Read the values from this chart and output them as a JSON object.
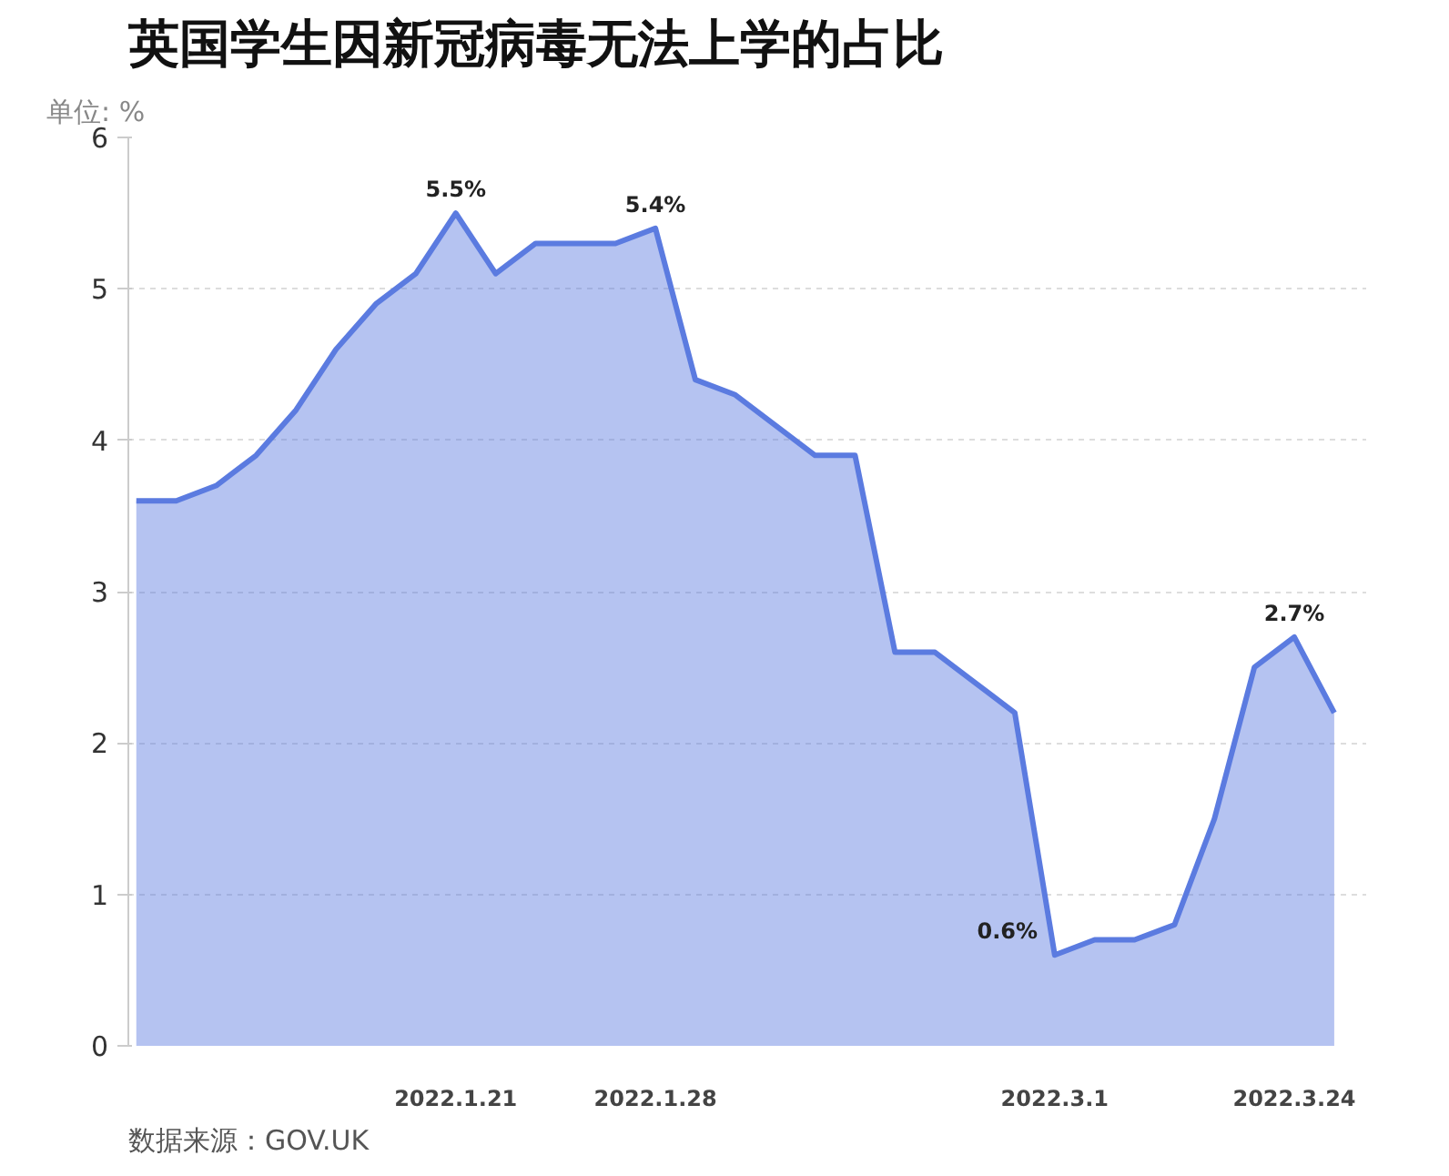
{
  "chart_data": {
    "type": "area",
    "title": "英国学生因新冠病毒无法上学的占比",
    "ylabel": "单位: %",
    "categories": [
      null,
      null,
      null,
      null,
      null,
      null,
      null,
      null,
      "2022.1.21",
      null,
      null,
      null,
      null,
      "2022.1.28",
      null,
      null,
      null,
      null,
      null,
      null,
      null,
      null,
      null,
      "2022.3.1",
      null,
      null,
      null,
      null,
      null,
      "2022.3.24",
      null
    ],
    "series": [
      {
        "color": "#5b7be0",
        "values": [
          3.6,
          3.6,
          3.7,
          3.9,
          4.2,
          4.6,
          4.9,
          5.1,
          5.5,
          5.1,
          5.3,
          5.3,
          5.3,
          5.4,
          4.4,
          4.3,
          4.1,
          3.9,
          3.9,
          2.6,
          2.6,
          2.4,
          2.2,
          0.6,
          0.7,
          0.7,
          0.8,
          1.5,
          2.5,
          2.7,
          2.2
        ],
        "value_labels": [
          null,
          null,
          null,
          null,
          null,
          null,
          null,
          null,
          "5.5%",
          null,
          null,
          null,
          null,
          "5.4%",
          null,
          null,
          null,
          null,
          null,
          null,
          null,
          null,
          null,
          "0.6%",
          null,
          null,
          null,
          null,
          null,
          "2.7%",
          null
        ]
      }
    ],
    "ylim": [
      0,
      6
    ],
    "yticks": [
      0,
      1,
      2,
      3,
      4,
      5,
      6
    ],
    "grid": "y",
    "annotations": [
      "数据来源：GOV.UK"
    ]
  }
}
